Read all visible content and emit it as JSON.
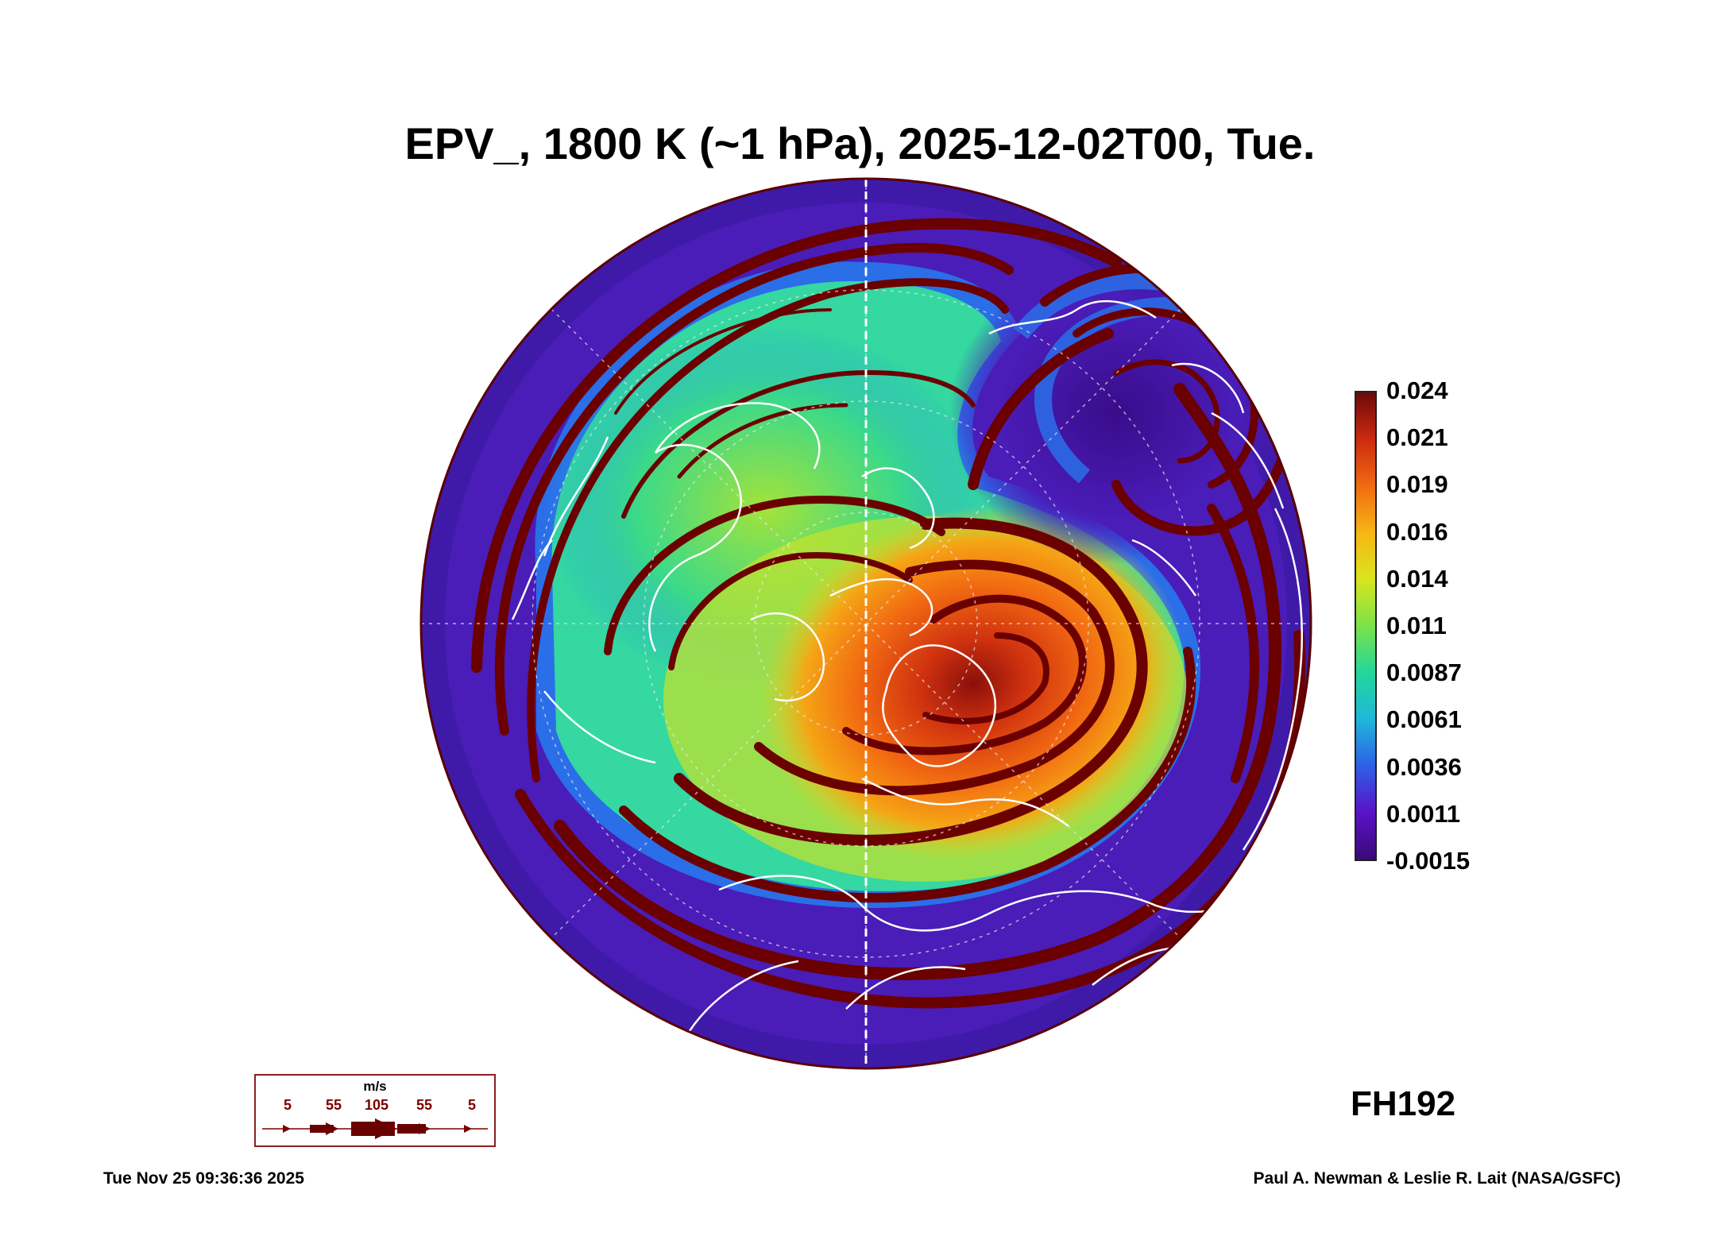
{
  "title": "EPV_, 1800 K (~1 hPa), 2025-12-02T00, Tue.",
  "colorbar": {
    "labels": [
      "0.024",
      "0.021",
      "0.019",
      "0.016",
      "0.014",
      "0.011",
      "0.0087",
      "0.0061",
      "0.0036",
      "0.0011",
      "-0.0015"
    ],
    "min": -0.0015,
    "max": 0.024,
    "colors": [
      "#3a0a75",
      "#5a12c8",
      "#2f5fe6",
      "#1fb7d8",
      "#23d69a",
      "#7be24a",
      "#d9e51e",
      "#f7b514",
      "#f06a12",
      "#cc2a10",
      "#6a0a0a"
    ]
  },
  "forecast_hour": "FH192",
  "wind_legend": {
    "unit": "m/s",
    "speeds": [
      "5",
      "55",
      "105",
      "55",
      "5"
    ]
  },
  "footer": {
    "timestamp": "Tue Nov 25 09:36:36 2025",
    "credit": "Paul A. Newman & Leslie R. Lait (NASA/GSFC)"
  },
  "map": {
    "projection": "orthographic polar",
    "background_color": "#4a1cb8",
    "streamline_color": "#6b0000",
    "coastline_color": "#ffffff"
  }
}
